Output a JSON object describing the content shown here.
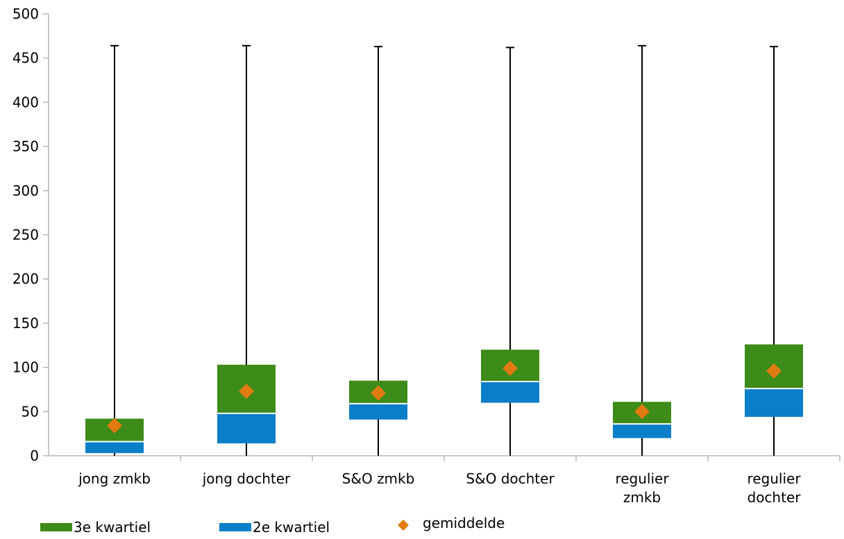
{
  "chart_data": {
    "type": "box",
    "ylim": [
      0,
      500
    ],
    "yticks": [
      "0",
      "50",
      "100",
      "150",
      "200",
      "250",
      "300",
      "350",
      "400",
      "450",
      "500"
    ],
    "grid": false,
    "legend_position": "bottom",
    "colors": {
      "q3": "#3d8b18",
      "q2": "#0a7ec8",
      "mean": "#e07b12",
      "whisker": "#000000",
      "axis": "#b5b5b5"
    },
    "categories": [
      [
        "jong zmkb"
      ],
      [
        "jong dochter"
      ],
      [
        "S&O zmkb"
      ],
      [
        "S&O dochter"
      ],
      [
        "regulier",
        "zmkb"
      ],
      [
        "regulier",
        "dochter"
      ]
    ],
    "series": [
      {
        "name": "2e kwartiel",
        "q1": [
          3,
          14,
          41,
          60,
          20,
          44
        ],
        "median": [
          16,
          48,
          59,
          84,
          36,
          76
        ]
      },
      {
        "name": "3e kwartiel",
        "median": [
          16,
          48,
          59,
          84,
          36,
          76
        ],
        "q3": [
          42,
          103,
          85,
          120,
          61,
          126
        ]
      },
      {
        "name": "gemiddelde",
        "values": [
          34,
          73,
          71,
          99,
          50,
          96
        ]
      }
    ],
    "whiskers": {
      "min": [
        0,
        0,
        0,
        0,
        0,
        0
      ],
      "max": [
        464,
        464,
        463,
        462,
        464,
        463
      ]
    },
    "legend": [
      "3e kwartiel",
      "2e kwartiel",
      "gemiddelde"
    ]
  }
}
